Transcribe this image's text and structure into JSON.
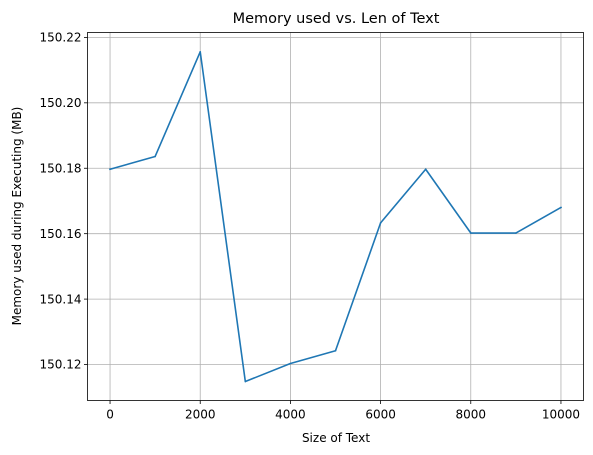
{
  "chart_data": {
    "type": "line",
    "title": "Memory used vs. Len of Text",
    "xlabel": "Size of Text",
    "ylabel": "Memory used during Executing (MB)",
    "xlim": [
      -500,
      10500
    ],
    "ylim": [
      150.109,
      150.2215
    ],
    "grid": true,
    "x_ticks": [
      {
        "value": 0,
        "label": "0"
      },
      {
        "value": 2000,
        "label": "2000"
      },
      {
        "value": 4000,
        "label": "4000"
      },
      {
        "value": 6000,
        "label": "6000"
      },
      {
        "value": 8000,
        "label": "8000"
      },
      {
        "value": 10000,
        "label": "10000"
      }
    ],
    "y_ticks": [
      {
        "value": 150.12,
        "label": "150.12"
      },
      {
        "value": 150.14,
        "label": "150.14"
      },
      {
        "value": 150.16,
        "label": "150.16"
      },
      {
        "value": 150.18,
        "label": "150.18"
      },
      {
        "value": 150.2,
        "label": "150.20"
      },
      {
        "value": 150.22,
        "label": "150.22"
      }
    ],
    "series": [
      {
        "color": "#1f77b4",
        "x": [
          0,
          1000,
          2000,
          3000,
          4000,
          5000,
          6000,
          7000,
          8000,
          9000,
          10000
        ],
        "y": [
          150.1797,
          150.1836,
          150.2156,
          150.1148,
          150.1203,
          150.1242,
          150.1633,
          150.1797,
          150.1602,
          150.1602,
          150.168
        ]
      }
    ]
  }
}
